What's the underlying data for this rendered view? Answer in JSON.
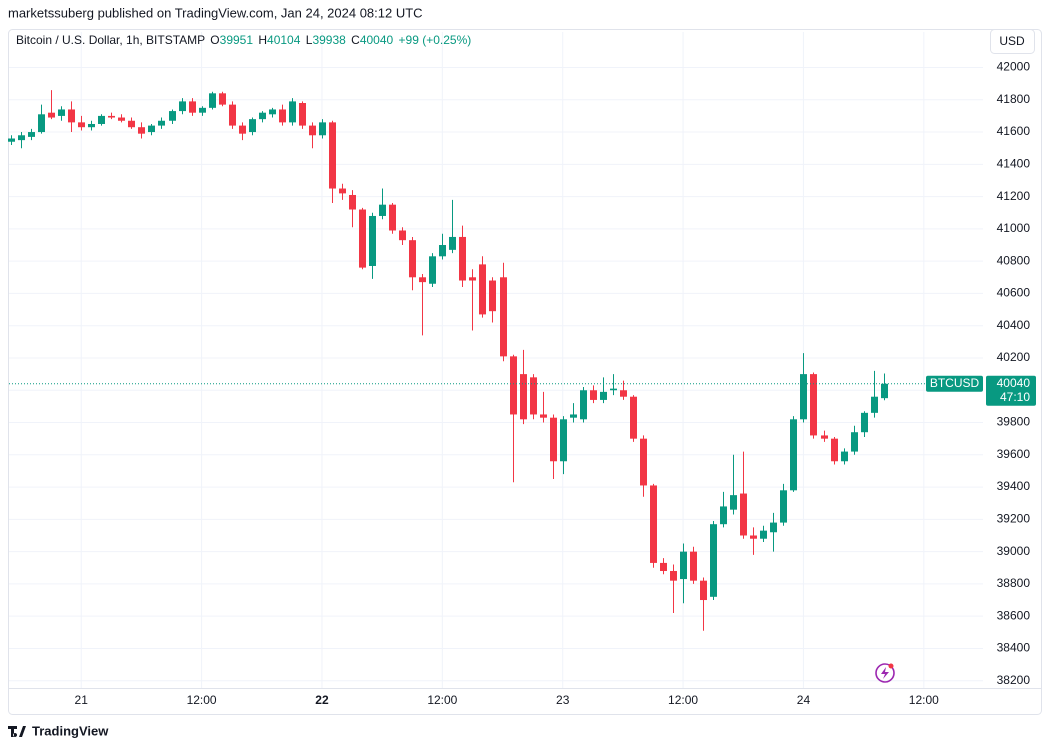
{
  "published": "marketssuberg published on TradingView.com, Jan 24, 2024 08:12 UTC",
  "currency_button": "USD",
  "brand": "TradingView",
  "chart_data": {
    "type": "candlestick",
    "legend": {
      "symbol_text": "Bitcoin / U.S. Dollar, 1h, BITSTAMP",
      "o_label": "O",
      "o": 39951,
      "h_label": "H",
      "h": 40104,
      "l_label": "L",
      "l": 39938,
      "c_label": "C",
      "c": 40040,
      "change": "+99 (+0.25%)"
    },
    "last_price": {
      "symbol": "BTCUSD",
      "value": 40040,
      "countdown": "47:10",
      "color": "#089981"
    },
    "up_color": "#089981",
    "down_color": "#f23645",
    "grid": true,
    "categories": [
      null,
      null,
      null,
      null,
      null,
      null,
      null,
      null,
      null,
      null,
      null,
      null,
      null,
      null,
      null,
      null,
      null,
      null,
      null,
      null,
      null,
      null,
      null,
      null,
      null,
      null,
      null,
      null,
      null,
      null,
      null,
      null,
      null,
      null,
      null,
      null,
      null,
      null,
      null,
      null,
      null,
      null,
      null,
      null,
      null,
      null,
      null,
      null,
      null,
      null,
      null,
      null,
      null,
      null,
      null,
      null,
      null,
      null,
      null,
      null,
      null,
      null,
      null,
      null,
      null,
      null,
      null,
      null,
      null,
      null,
      null,
      null,
      null,
      null,
      null,
      null,
      null,
      null,
      null,
      null,
      null,
      null,
      null,
      null,
      null,
      null,
      null,
      null
    ],
    "open": [
      41540,
      41550,
      41570,
      41600,
      41720,
      41700,
      41740,
      41660,
      41630,
      41650,
      41700,
      41690,
      41670,
      41630,
      41600,
      41640,
      41670,
      41730,
      41790,
      41720,
      41750,
      41840,
      41770,
      41640,
      41600,
      41680,
      41710,
      41740,
      41660,
      41780,
      41640,
      41580,
      41660,
      41250,
      41210,
      41120,
      40770,
      41080,
      41150,
      40990,
      40930,
      40700,
      40660,
      40830,
      40870,
      40950,
      40700,
      40780,
      40680,
      40700,
      40210,
      40100,
      40080,
      39850,
      39830,
      39560,
      39830,
      39820,
      40000,
      39940,
      40000,
      40000,
      39960,
      39700,
      39410,
      38930,
      38880,
      38830,
      39000,
      38820,
      38720,
      39170,
      39260,
      39360,
      39100,
      39080,
      39120,
      39180,
      39380,
      39820,
      40100,
      39720,
      39700,
      39560,
      39620,
      39740,
      39860,
      39951
    ],
    "high": [
      41580,
      41600,
      41620,
      41770,
      41860,
      41760,
      41790,
      41700,
      41670,
      41710,
      41720,
      41710,
      41690,
      41660,
      41650,
      41690,
      41740,
      41810,
      41810,
      41760,
      41850,
      41850,
      41790,
      41660,
      41690,
      41730,
      41750,
      41770,
      41810,
      41790,
      41660,
      41680,
      41670,
      41280,
      41240,
      41130,
      41100,
      41250,
      41160,
      41010,
      40950,
      40720,
      40850,
      40970,
      41180,
      41020,
      40750,
      40830,
      40700,
      40790,
      40220,
      40250,
      40100,
      39990,
      39850,
      39840,
      39920,
      40020,
      40030,
      40080,
      40100,
      40060,
      39970,
      39720,
      39420,
      38960,
      38920,
      39050,
      39030,
      38840,
      39190,
      39370,
      39600,
      39620,
      39150,
      39160,
      39240,
      39420,
      39840,
      40230,
      40110,
      39750,
      39710,
      39640,
      39780,
      39870,
      40120,
      40104
    ],
    "low": [
      41520,
      41500,
      41550,
      41590,
      41680,
      41670,
      41600,
      41610,
      41610,
      41640,
      41680,
      41660,
      41620,
      41560,
      41580,
      41620,
      41650,
      41710,
      41700,
      41700,
      41740,
      41760,
      41620,
      41550,
      41580,
      41660,
      41690,
      41640,
      41640,
      41620,
      41500,
      41560,
      41160,
      41180,
      41010,
      40750,
      40690,
      41060,
      40970,
      40900,
      40620,
      40340,
      40640,
      40810,
      40850,
      40640,
      40370,
      40450,
      40420,
      40180,
      39430,
      39790,
      39820,
      39800,
      39450,
      39480,
      39800,
      39800,
      39920,
      39920,
      39970,
      39940,
      39680,
      39340,
      38900,
      38860,
      38620,
      38680,
      38800,
      38510,
      38700,
      39150,
      39230,
      39080,
      38980,
      39060,
      39000,
      39160,
      39370,
      39800,
      39700,
      39680,
      39540,
      39540,
      39600,
      39710,
      39830,
      39938
    ],
    "close": [
      41560,
      41580,
      41600,
      41710,
      41690,
      41740,
      41660,
      41630,
      41650,
      41700,
      41690,
      41670,
      41630,
      41590,
      41640,
      41670,
      41730,
      41790,
      41720,
      41750,
      41840,
      41770,
      41640,
      41590,
      41680,
      41720,
      41740,
      41660,
      41790,
      41640,
      41580,
      41660,
      41250,
      41220,
      41120,
      40760,
      41080,
      41150,
      40990,
      40930,
      40700,
      40670,
      40830,
      40900,
      40950,
      40680,
      40680,
      40470,
      40490,
      40210,
      39850,
      39820,
      39850,
      39830,
      39560,
      39820,
      39850,
      40000,
      39940,
      39990,
      40010,
      39960,
      39700,
      39410,
      38930,
      38880,
      38820,
      39000,
      38820,
      38700,
      39170,
      39280,
      39350,
      39100,
      39080,
      39130,
      39180,
      39380,
      39820,
      40100,
      39720,
      39700,
      39560,
      39620,
      39740,
      39860,
      39960,
      40040
    ],
    "xlim": [
      -0.2,
      96.9
    ],
    "xticks": [
      {
        "value": 7,
        "label": "21"
      },
      {
        "value": 19,
        "label": "12:00"
      },
      {
        "value": 31,
        "label": "22"
      },
      {
        "value": 43,
        "label": "12:00"
      },
      {
        "value": 55,
        "label": "23"
      },
      {
        "value": 67,
        "label": "12:00"
      },
      {
        "value": 79,
        "label": "24"
      },
      {
        "value": 91,
        "label": "12:00"
      }
    ],
    "ylim": [
      38000,
      42220
    ],
    "yticks": [
      38200,
      38400,
      38600,
      38800,
      39000,
      39200,
      39400,
      39600,
      39800,
      40000,
      40200,
      40400,
      40600,
      40800,
      41000,
      41200,
      41400,
      41600,
      41800,
      42000
    ]
  }
}
